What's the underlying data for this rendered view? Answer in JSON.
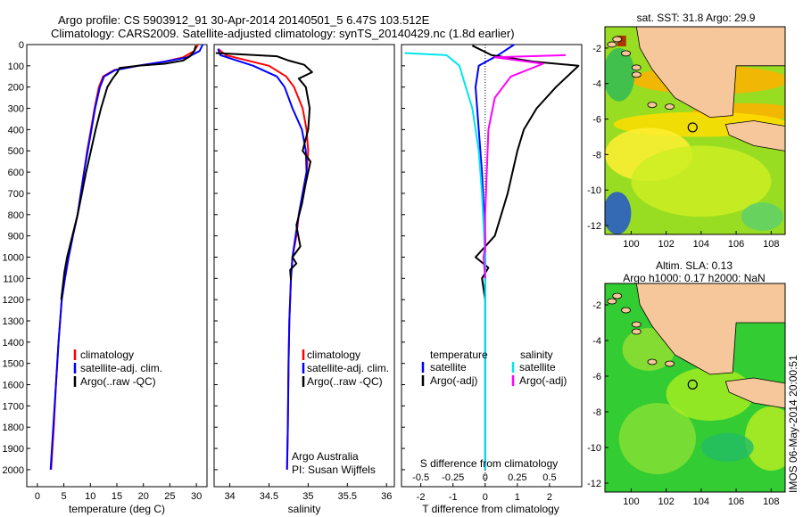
{
  "figure": {
    "title_line1": "Argo profile: CS 5903912_91 30-Apr-2014 20140501_5 6.47S 103.512E",
    "title_line2": "Climatology: CARS2009. Satellite-adjusted climatology: synTS_20140429.nc (1.8d earlier)",
    "sst_title": "sat. SST: 31.8 Argo: 29.9",
    "sla_title1": "Altim. SLA: 0.13",
    "sla_title2": "Argo h1000: 0.17 h2000: NaN",
    "side_note": "IMOS 06-May-2014 20:00:51",
    "credit1": "Argo Australia",
    "credit2": "PI: Susan Wijffels"
  },
  "colors": {
    "climatology": "#ff0000",
    "satellite": "#0000ff",
    "argo": "#000000",
    "s_satellite": "#00e5ee",
    "s_argo": "#ff00ff",
    "land": "#f7c79c",
    "ocean_sla": "#33cc33"
  },
  "chart_data": [
    {
      "type": "line",
      "title": "",
      "xlabel": "temperature (deg C)",
      "ylabel": "",
      "xlim": [
        -2,
        32
      ],
      "ylim": [
        2080,
        0
      ],
      "xticks": [
        0,
        5,
        10,
        15,
        20,
        25,
        30
      ],
      "yticks": [
        0,
        100,
        200,
        300,
        400,
        500,
        600,
        700,
        800,
        900,
        1000,
        1100,
        1200,
        1300,
        1400,
        1500,
        1600,
        1700,
        1800,
        1900,
        2000
      ],
      "legend": [
        "climatology",
        "satellite-adj. clim.",
        "Argo(..raw -QC)"
      ],
      "series": [
        {
          "name": "climatology",
          "color_key": "climatology",
          "x": [
            30.3,
            29.6,
            27.5,
            24,
            19,
            14.5,
            12.4,
            11.6,
            10.8,
            10.1,
            9.4,
            8.8,
            8.2,
            7.6,
            6.7,
            5.9,
            5.2,
            4.6,
            4.0,
            3.5,
            3.1,
            2.6
          ],
          "y": [
            0,
            30,
            60,
            80,
            100,
            120,
            150,
            200,
            300,
            400,
            500,
            600,
            700,
            800,
            900,
            1000,
            1100,
            1200,
            1400,
            1600,
            1800,
            2000
          ]
        },
        {
          "name": "satellite-adj. clim.",
          "color_key": "satellite",
          "x": [
            31.2,
            30.6,
            28.3,
            24,
            19,
            14.7,
            12.6,
            11.8,
            10.9,
            10.2,
            9.5,
            8.8,
            8.2,
            7.6,
            6.7,
            5.9,
            5.2,
            4.6,
            4.0,
            3.5,
            3.0,
            2.5
          ],
          "y": [
            0,
            30,
            60,
            80,
            100,
            120,
            150,
            200,
            300,
            400,
            500,
            600,
            700,
            800,
            900,
            1000,
            1100,
            1200,
            1400,
            1600,
            1800,
            2000
          ]
        },
        {
          "name": "Argo(..raw -QC)",
          "color_key": "argo",
          "x": [
            29.9,
            29.6,
            28.8,
            27.5,
            24,
            19,
            15.5,
            15.1,
            14.2,
            13.2,
            12.0,
            11.0,
            10.1,
            9.2,
            8.4,
            7.6,
            6.6,
            5.6,
            5.1,
            4.5
          ],
          "y": [
            5,
            30,
            55,
            75,
            90,
            100,
            110,
            130,
            160,
            200,
            300,
            400,
            500,
            600,
            700,
            800,
            900,
            1000,
            1070,
            1200
          ]
        }
      ]
    },
    {
      "type": "line",
      "title": "",
      "xlabel": "salinity",
      "ylabel": "",
      "xlim": [
        33.8,
        36.1
      ],
      "ylim": [
        2080,
        0
      ],
      "xticks": [
        34,
        34.5,
        35,
        35.5,
        36
      ],
      "legend": [
        "climatology",
        "satellite-adj. clim.",
        "Argo(..raw -QC)"
      ],
      "series": [
        {
          "name": "climatology",
          "color_key": "climatology",
          "x": [
            33.85,
            33.95,
            34.5,
            34.72,
            34.82,
            34.93,
            34.98,
            35.0,
            34.98,
            34.93,
            34.88,
            34.85,
            34.8,
            34.78,
            34.76,
            34.75,
            34.74,
            34.73
          ],
          "y": [
            20,
            50,
            100,
            150,
            200,
            300,
            400,
            500,
            600,
            700,
            800,
            900,
            1000,
            1100,
            1300,
            1500,
            1800,
            2000
          ]
        },
        {
          "name": "satellite-adj. clim.",
          "color_key": "satellite",
          "x": [
            33.85,
            33.88,
            34.3,
            34.6,
            34.7,
            34.8,
            34.92,
            34.97,
            34.98,
            34.93,
            34.88,
            34.84,
            34.8,
            34.78,
            34.76,
            34.75,
            34.74,
            34.73
          ],
          "y": [
            20,
            50,
            100,
            150,
            200,
            300,
            400,
            500,
            600,
            700,
            800,
            900,
            1000,
            1100,
            1300,
            1500,
            1800,
            2000
          ]
        },
        {
          "name": "Argo(..raw -QC)",
          "color_key": "argo",
          "x": [
            33.82,
            34.6,
            34.75,
            34.95,
            35.05,
            34.88,
            34.97,
            35.02,
            35.0,
            34.93,
            35.03,
            34.97,
            34.92,
            34.85,
            34.9,
            34.8,
            34.85,
            34.77,
            34.78
          ],
          "y": [
            40,
            55,
            75,
            95,
            130,
            160,
            200,
            300,
            400,
            500,
            550,
            650,
            750,
            850,
            950,
            1000,
            1030,
            1060,
            1110
          ]
        }
      ]
    },
    {
      "type": "line",
      "title": "",
      "xlabel": "T difference from climatology",
      "xlabel_top": "S difference from climatology",
      "ylabel": "",
      "xlim": [
        -2.6,
        3.0
      ],
      "ylim": [
        2080,
        0
      ],
      "xticks": [
        -2,
        -1,
        0,
        1,
        2
      ],
      "xticks_s": [
        -0.5,
        -0.25,
        0,
        0.25,
        0.5
      ],
      "legend_titles": [
        "temperature",
        "salinity"
      ],
      "legend": [
        "satellite",
        "Argo(-adj)",
        "satellite",
        "Argo(-adj)"
      ],
      "series": [
        {
          "name": "satellite",
          "group": "temperature",
          "color_key": "satellite",
          "x": [
            0.9,
            0.4,
            -0.2,
            -0.3,
            -0.2,
            -0.1,
            0.0,
            0.0,
            0.0,
            0.0
          ],
          "y": [
            0,
            50,
            100,
            200,
            400,
            600,
            900,
            1200,
            1600,
            2000
          ]
        },
        {
          "name": "Argo(-adj)",
          "group": "temperature",
          "color_key": "argo",
          "x": [
            -0.4,
            0.2,
            1.5,
            2.9,
            2.2,
            1.6,
            1.2,
            1.0,
            0.7,
            0.5,
            0.3,
            -0.3,
            0.1,
            -0.1,
            0.0
          ],
          "y": [
            5,
            50,
            80,
            100,
            200,
            300,
            400,
            500,
            700,
            800,
            900,
            1000,
            1050,
            1100,
            1200
          ]
        },
        {
          "name": "satellite",
          "group": "salinity",
          "color_key": "s_satellite",
          "x": [
            -2.5,
            -1.2,
            -0.8,
            -0.6,
            -0.4,
            -0.2,
            -0.1,
            0.0,
            0.0,
            0.0
          ],
          "y": [
            40,
            50,
            100,
            200,
            300,
            500,
            700,
            1000,
            1500,
            2000
          ]
        },
        {
          "name": "Argo(-adj)",
          "group": "salinity",
          "color_key": "s_argo",
          "x": [
            2.5,
            0.3,
            1.8,
            0.8,
            0.3,
            0.1,
            0.05,
            0.0,
            0.0,
            -0.05,
            0.0
          ],
          "y": [
            50,
            60,
            90,
            150,
            250,
            400,
            600,
            800,
            950,
            1000,
            1100
          ]
        }
      ]
    },
    {
      "type": "heatmap",
      "title": "sat. SST: 31.8 Argo: 29.9",
      "xlim": [
        98.5,
        108.8
      ],
      "ylim": [
        -12.5,
        -0.8
      ],
      "xticks": [
        100,
        102,
        104,
        106,
        108
      ],
      "yticks": [
        -2,
        -4,
        -6,
        -8,
        -10,
        -12
      ],
      "marker": {
        "lon": 103.512,
        "lat": -6.47
      }
    },
    {
      "type": "heatmap",
      "title": "Altim. SLA: 0.13",
      "subtitle": "Argo h1000: 0.17 h2000: NaN",
      "xlim": [
        98.5,
        108.8
      ],
      "ylim": [
        -12.5,
        -0.8
      ],
      "xticks": [
        100,
        102,
        104,
        106,
        108
      ],
      "yticks": [
        -2,
        -4,
        -6,
        -8,
        -10,
        -12
      ],
      "marker": {
        "lon": 103.512,
        "lat": -6.47
      }
    }
  ]
}
